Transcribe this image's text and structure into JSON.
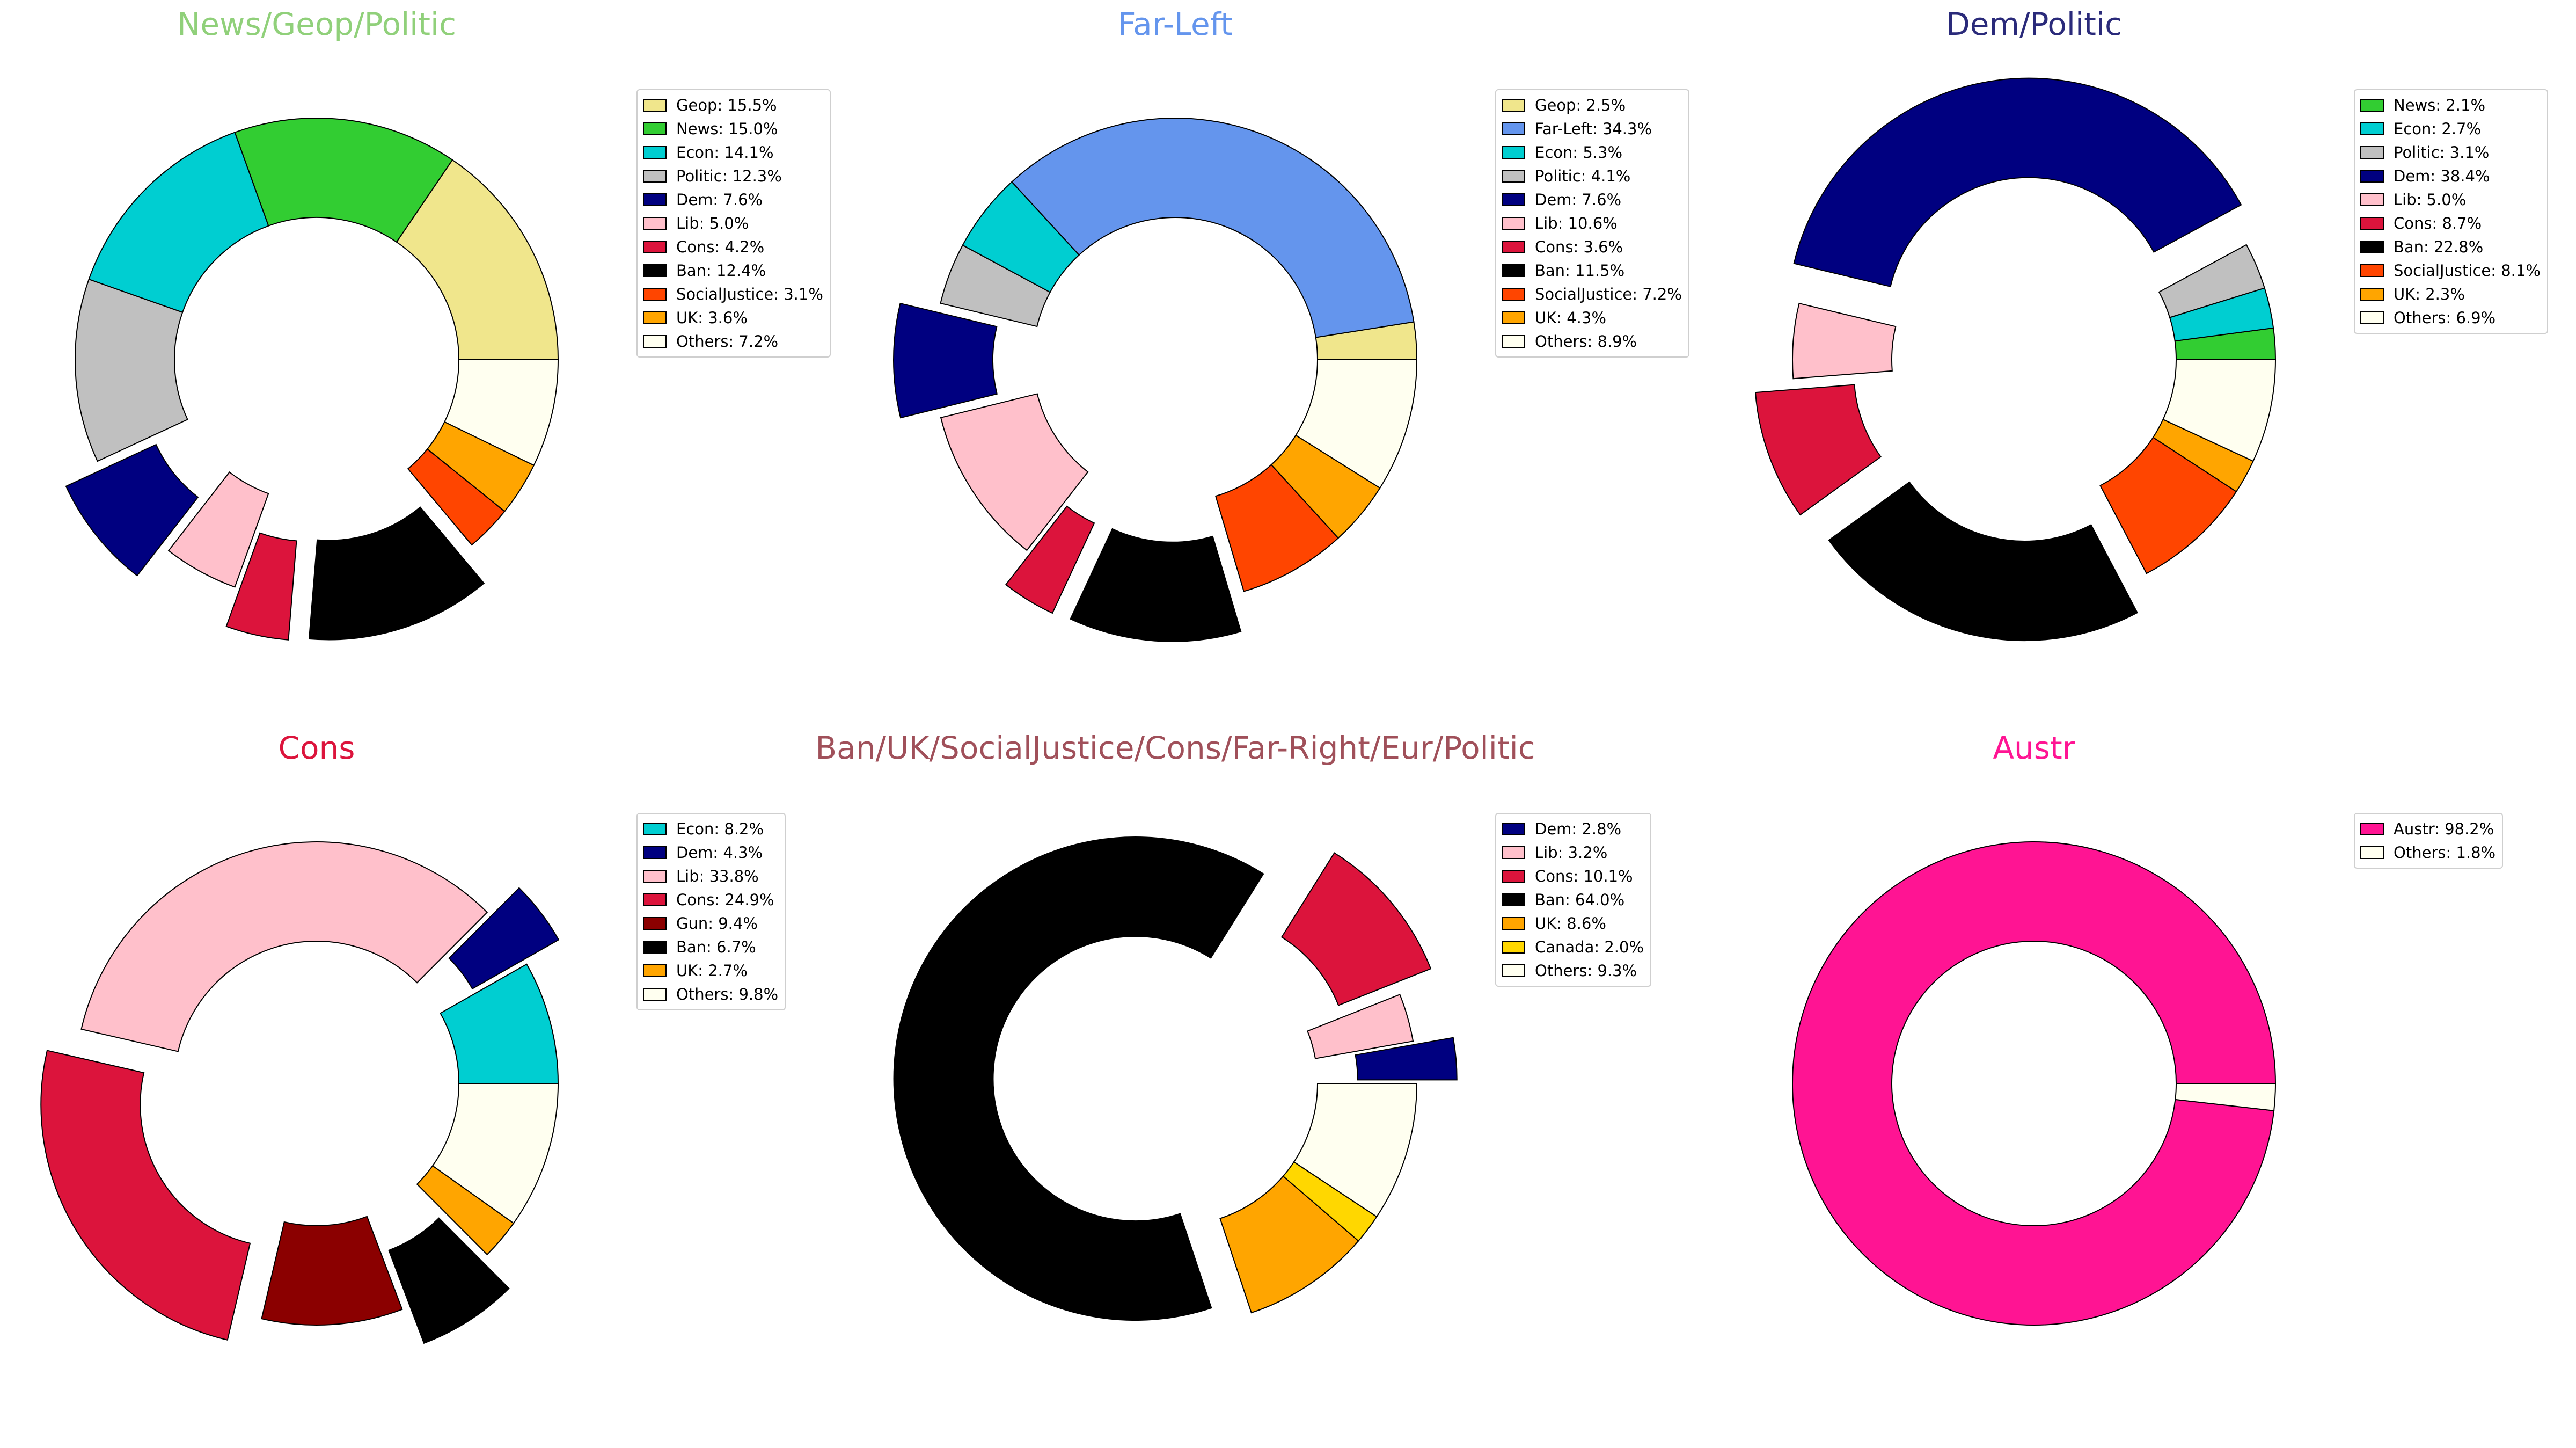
{
  "chart_data": [
    {
      "type": "pie",
      "donut": true,
      "title": "News/Geop/Politic",
      "title_color": "#90d07a",
      "slices": [
        {
          "label": "Geop",
          "value": 15.5,
          "legend": "Geop: 15.5%",
          "color": "#f0e68c",
          "exploded": false
        },
        {
          "label": "News",
          "value": 15.0,
          "legend": "News: 15.0%",
          "color": "#32cd32",
          "exploded": false
        },
        {
          "label": "Econ",
          "value": 14.1,
          "legend": "Econ: 14.1%",
          "color": "#00ced1",
          "exploded": false
        },
        {
          "label": "Politic",
          "value": 12.3,
          "legend": "Politic: 12.3%",
          "color": "#c0c0c0",
          "exploded": false
        },
        {
          "label": "Dem",
          "value": 7.6,
          "legend": "Dem: 7.6%",
          "color": "#000080",
          "exploded": true
        },
        {
          "label": "Lib",
          "value": 5.0,
          "legend": "Lib: 5.0%",
          "color": "#ffc0cb",
          "exploded": false
        },
        {
          "label": "Cons",
          "value": 4.2,
          "legend": "Cons: 4.2%",
          "color": "#dc143c",
          "exploded": true
        },
        {
          "label": "Ban",
          "value": 12.4,
          "legend": "Ban: 12.4%",
          "color": "#000000",
          "exploded": true
        },
        {
          "label": "SocialJustice",
          "value": 3.1,
          "legend": "SocialJustice: 3.1%",
          "color": "#ff4500",
          "exploded": false
        },
        {
          "label": "UK",
          "value": 3.6,
          "legend": "UK: 3.6%",
          "color": "#ffa500",
          "exploded": false
        },
        {
          "label": "Others",
          "value": 7.2,
          "legend": "Others: 7.2%",
          "color": "#fffff0",
          "exploded": false
        }
      ]
    },
    {
      "type": "pie",
      "donut": true,
      "title": "Far-Left",
      "title_color": "#6495ed",
      "slices": [
        {
          "label": "Geop",
          "value": 2.5,
          "legend": "Geop: 2.5%",
          "color": "#f0e68c",
          "exploded": false
        },
        {
          "label": "Far-Left",
          "value": 34.3,
          "legend": "Far-Left: 34.3%",
          "color": "#6495ed",
          "exploded": false
        },
        {
          "label": "Econ",
          "value": 5.3,
          "legend": "Econ: 5.3%",
          "color": "#00ced1",
          "exploded": false
        },
        {
          "label": "Politic",
          "value": 4.1,
          "legend": "Politic: 4.1%",
          "color": "#c0c0c0",
          "exploded": false
        },
        {
          "label": "Dem",
          "value": 7.6,
          "legend": "Dem: 7.6%",
          "color": "#000080",
          "exploded": true
        },
        {
          "label": "Lib",
          "value": 10.6,
          "legend": "Lib: 10.6%",
          "color": "#ffc0cb",
          "exploded": false
        },
        {
          "label": "Cons",
          "value": 3.6,
          "legend": "Cons: 3.6%",
          "color": "#dc143c",
          "exploded": true
        },
        {
          "label": "Ban",
          "value": 11.5,
          "legend": "Ban: 11.5%",
          "color": "#000000",
          "exploded": true
        },
        {
          "label": "SocialJustice",
          "value": 7.2,
          "legend": "SocialJustice: 7.2%",
          "color": "#ff4500",
          "exploded": false
        },
        {
          "label": "UK",
          "value": 4.3,
          "legend": "UK: 4.3%",
          "color": "#ffa500",
          "exploded": false
        },
        {
          "label": "Others",
          "value": 8.9,
          "legend": "Others: 8.9%",
          "color": "#fffff0",
          "exploded": false
        }
      ]
    },
    {
      "type": "pie",
      "donut": true,
      "title": "Dem/Politic",
      "title_color": "#2a2a7a",
      "slices": [
        {
          "label": "News",
          "value": 2.1,
          "legend": "News: 2.1%",
          "color": "#32cd32",
          "exploded": false
        },
        {
          "label": "Econ",
          "value": 2.7,
          "legend": "Econ: 2.7%",
          "color": "#00ced1",
          "exploded": false
        },
        {
          "label": "Politic",
          "value": 3.1,
          "legend": "Politic: 3.1%",
          "color": "#c0c0c0",
          "exploded": false
        },
        {
          "label": "Dem",
          "value": 38.4,
          "legend": "Dem: 38.4%",
          "color": "#000080",
          "exploded": true
        },
        {
          "label": "Lib",
          "value": 5.0,
          "legend": "Lib: 5.0%",
          "color": "#ffc0cb",
          "exploded": false
        },
        {
          "label": "Cons",
          "value": 8.7,
          "legend": "Cons: 8.7%",
          "color": "#dc143c",
          "exploded": true
        },
        {
          "label": "Ban",
          "value": 22.8,
          "legend": "Ban: 22.8%",
          "color": "#000000",
          "exploded": true
        },
        {
          "label": "SocialJustice",
          "value": 8.1,
          "legend": "SocialJustice: 8.1%",
          "color": "#ff4500",
          "exploded": false
        },
        {
          "label": "UK",
          "value": 2.3,
          "legend": "UK: 2.3%",
          "color": "#ffa500",
          "exploded": false
        },
        {
          "label": "Others",
          "value": 6.9,
          "legend": "Others: 6.9%",
          "color": "#fffff0",
          "exploded": false
        }
      ]
    },
    {
      "type": "pie",
      "donut": true,
      "title": "Cons",
      "title_color": "#dc143c",
      "slices": [
        {
          "label": "Econ",
          "value": 8.2,
          "legend": "Econ: 8.2%",
          "color": "#00ced1",
          "exploded": false
        },
        {
          "label": "Dem",
          "value": 4.3,
          "legend": "Dem: 4.3%",
          "color": "#000080",
          "exploded": true
        },
        {
          "label": "Lib",
          "value": 33.8,
          "legend": "Lib: 33.8%",
          "color": "#ffc0cb",
          "exploded": false
        },
        {
          "label": "Cons",
          "value": 24.9,
          "legend": "Cons: 24.9%",
          "color": "#dc143c",
          "exploded": true
        },
        {
          "label": "Gun",
          "value": 9.4,
          "legend": "Gun: 9.4%",
          "color": "#8b0000",
          "exploded": false
        },
        {
          "label": "Ban",
          "value": 6.7,
          "legend": "Ban: 6.7%",
          "color": "#000000",
          "exploded": true
        },
        {
          "label": "UK",
          "value": 2.7,
          "legend": "UK: 2.7%",
          "color": "#ffa500",
          "exploded": false
        },
        {
          "label": "Others",
          "value": 9.8,
          "legend": "Others: 9.8%",
          "color": "#fffff0",
          "exploded": false
        }
      ]
    },
    {
      "type": "pie",
      "donut": true,
      "title": "Ban/UK/SocialJustice/Cons/Far-Right/Eur/Politic",
      "title_color": "#a0505a",
      "slices": [
        {
          "label": "Dem",
          "value": 2.8,
          "legend": "Dem: 2.8%",
          "color": "#000080",
          "exploded": true
        },
        {
          "label": "Lib",
          "value": 3.2,
          "legend": "Lib: 3.2%",
          "color": "#ffc0cb",
          "exploded": false
        },
        {
          "label": "Cons",
          "value": 10.1,
          "legend": "Cons: 10.1%",
          "color": "#dc143c",
          "exploded": true
        },
        {
          "label": "Ban",
          "value": 64.0,
          "legend": "Ban: 64.0%",
          "color": "#000000",
          "exploded": true
        },
        {
          "label": "UK",
          "value": 8.6,
          "legend": "UK: 8.6%",
          "color": "#ffa500",
          "exploded": false
        },
        {
          "label": "Canada",
          "value": 2.0,
          "legend": "Canada: 2.0%",
          "color": "#ffd700",
          "exploded": false
        },
        {
          "label": "Others",
          "value": 9.3,
          "legend": "Others: 9.3%",
          "color": "#fffff0",
          "exploded": false
        }
      ]
    },
    {
      "type": "pie",
      "donut": true,
      "title": "Austr",
      "title_color": "#ff1493",
      "slices": [
        {
          "label": "Austr",
          "value": 98.2,
          "legend": "Austr: 98.2%",
          "color": "#ff1493",
          "exploded": false
        },
        {
          "label": "Others",
          "value": 1.8,
          "legend": "Others: 1.8%",
          "color": "#fffff0",
          "exploded": false
        }
      ]
    }
  ]
}
